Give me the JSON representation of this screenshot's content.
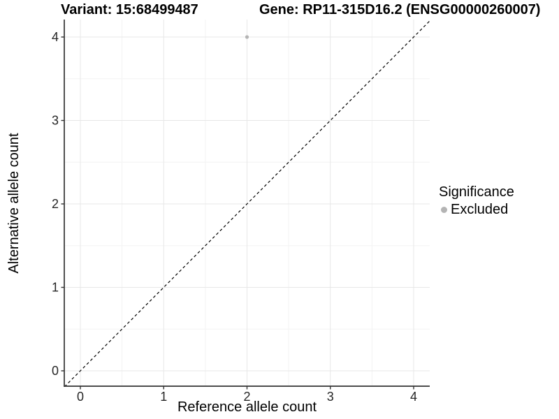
{
  "chart_data": {
    "type": "scatter",
    "titles": {
      "left": "Variant: 15:68499487",
      "right": "Gene: RP11-315D16.2 (ENSG00000260007)"
    },
    "xlabel": "Reference allele count",
    "ylabel": "Alternative allele count",
    "xlim": [
      -0.19,
      4.19
    ],
    "ylim": [
      -0.18,
      4.2
    ],
    "x_ticks": [
      0,
      1,
      2,
      3,
      4
    ],
    "y_ticks": [
      0,
      1,
      2,
      3,
      4
    ],
    "x_minor": [
      0.5,
      1.5,
      2.5,
      3.5
    ],
    "y_minor": [
      0.5,
      1.5,
      2.5,
      3.5
    ],
    "grid": true,
    "identity_line": {
      "style": "dashed",
      "color": "#000000",
      "from": [
        -0.19,
        -0.19
      ],
      "to": [
        4.19,
        4.19
      ]
    },
    "series": [
      {
        "name": "Excluded",
        "color": "#b4b4b4",
        "points": [
          {
            "x": 2,
            "y": 4
          }
        ]
      }
    ],
    "legend": {
      "title": "Significance",
      "position": "right",
      "entries": [
        {
          "label": "Excluded",
          "color": "#b4b4b4"
        }
      ]
    },
    "colors": {
      "axis_line": "#333333",
      "tick_mark": "#333333",
      "tick_label": "#262626",
      "grid_major": "#e7e7e7",
      "grid_minor": "#f3f3f3",
      "background": "#ffffff"
    }
  }
}
